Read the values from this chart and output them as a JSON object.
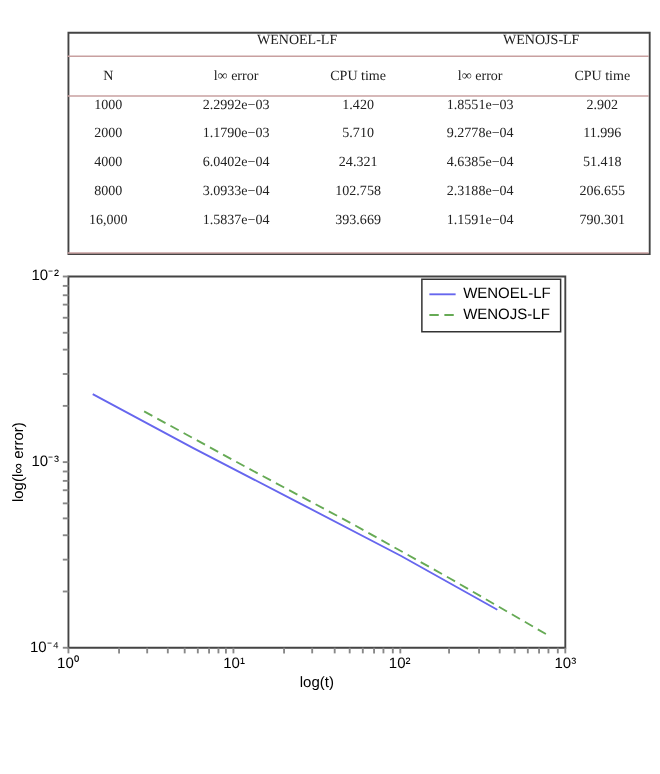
{
  "chart_data": [
    {
      "type": "other",
      "annotations": [
        "WENOEL-LF",
        "WENOJS-LF",
        "N",
        "l∞ error",
        "CPU time",
        "l∞ error",
        "CPU time",
        "1000",
        "2.2992e−03",
        "1.420",
        "1.8551e−03",
        "2.902",
        "2000",
        "1.1790e−03",
        "5.710",
        "9.2778e−04",
        "11.996",
        "4000",
        "6.0402e−04",
        "24.321",
        "4.6385e−04",
        "51.418",
        "8000",
        "3.0933e−04",
        "102.758",
        "2.3188e−04",
        "206.655",
        "16,000",
        "1.5837e−04",
        "393.669",
        "1.1591e−04",
        "790.301"
      ]
    },
    {
      "type": "line",
      "xlabel": "log(t)",
      "ylabel": "log(l∞ error)",
      "log": "xy",
      "legend": "top right",
      "grid": false,
      "xlim": [
        1,
        1000
      ],
      "ylim": [
        0.0001,
        0.01
      ],
      "xticks": [
        {
          "value": 1,
          "label": "10⁰"
        },
        {
          "value": 2,
          "label": null
        },
        {
          "value": 3,
          "label": null
        },
        {
          "value": 4,
          "label": null
        },
        {
          "value": 5,
          "label": null
        },
        {
          "value": 6,
          "label": null
        },
        {
          "value": 7,
          "label": null
        },
        {
          "value": 8,
          "label": null
        },
        {
          "value": 9,
          "label": null
        },
        {
          "value": 10,
          "label": "10¹"
        },
        {
          "value": 20,
          "label": null
        },
        {
          "value": 30,
          "label": null
        },
        {
          "value": 40,
          "label": null
        },
        {
          "value": 50,
          "label": null
        },
        {
          "value": 60,
          "label": null
        },
        {
          "value": 70,
          "label": null
        },
        {
          "value": 80,
          "label": null
        },
        {
          "value": 90,
          "label": null
        },
        {
          "value": 100,
          "label": "10²"
        },
        {
          "value": 200,
          "label": null
        },
        {
          "value": 300,
          "label": null
        },
        {
          "value": 400,
          "label": null
        },
        {
          "value": 500,
          "label": null
        },
        {
          "value": 600,
          "label": null
        },
        {
          "value": 700,
          "label": null
        },
        {
          "value": 800,
          "label": null
        },
        {
          "value": 900,
          "label": null
        },
        {
          "value": 1000,
          "label": "10³"
        }
      ],
      "yticks": [
        {
          "value": 0.0001,
          "label": "10⁻⁴"
        },
        {
          "value": 0.0002,
          "label": null
        },
        {
          "value": 0.0003,
          "label": null
        },
        {
          "value": 0.0004,
          "label": null
        },
        {
          "value": 0.0005,
          "label": null
        },
        {
          "value": 0.0006,
          "label": null
        },
        {
          "value": 0.0007,
          "label": null
        },
        {
          "value": 0.0008,
          "label": null
        },
        {
          "value": 0.0009,
          "label": null
        },
        {
          "value": 0.001,
          "label": "10⁻³"
        },
        {
          "value": 0.002,
          "label": null
        },
        {
          "value": 0.003,
          "label": null
        },
        {
          "value": 0.004,
          "label": null
        },
        {
          "value": 0.005,
          "label": null
        },
        {
          "value": 0.006,
          "label": null
        },
        {
          "value": 0.007,
          "label": null
        },
        {
          "value": 0.008,
          "label": null
        },
        {
          "value": 0.009,
          "label": null
        },
        {
          "value": 0.01,
          "label": "10⁻²"
        }
      ],
      "series": [
        {
          "name": "WENOEL-LF",
          "color": "#6666ee",
          "line_style": "solid",
          "x": [
            1.42,
            5.71,
            24.321,
            102.758,
            393.669
          ],
          "values": [
            0.0022992,
            0.001179,
            0.00060402,
            0.00030933,
            0.00015837
          ]
        },
        {
          "name": "WENOJS-LF",
          "color": "#66aa55",
          "line_style": "dashed",
          "x": [
            2.902,
            11.996,
            51.418,
            206.655,
            790.301
          ],
          "values": [
            0.0018551,
            0.00092778,
            0.00046385,
            0.00023188,
            0.00011591
          ]
        }
      ]
    }
  ]
}
